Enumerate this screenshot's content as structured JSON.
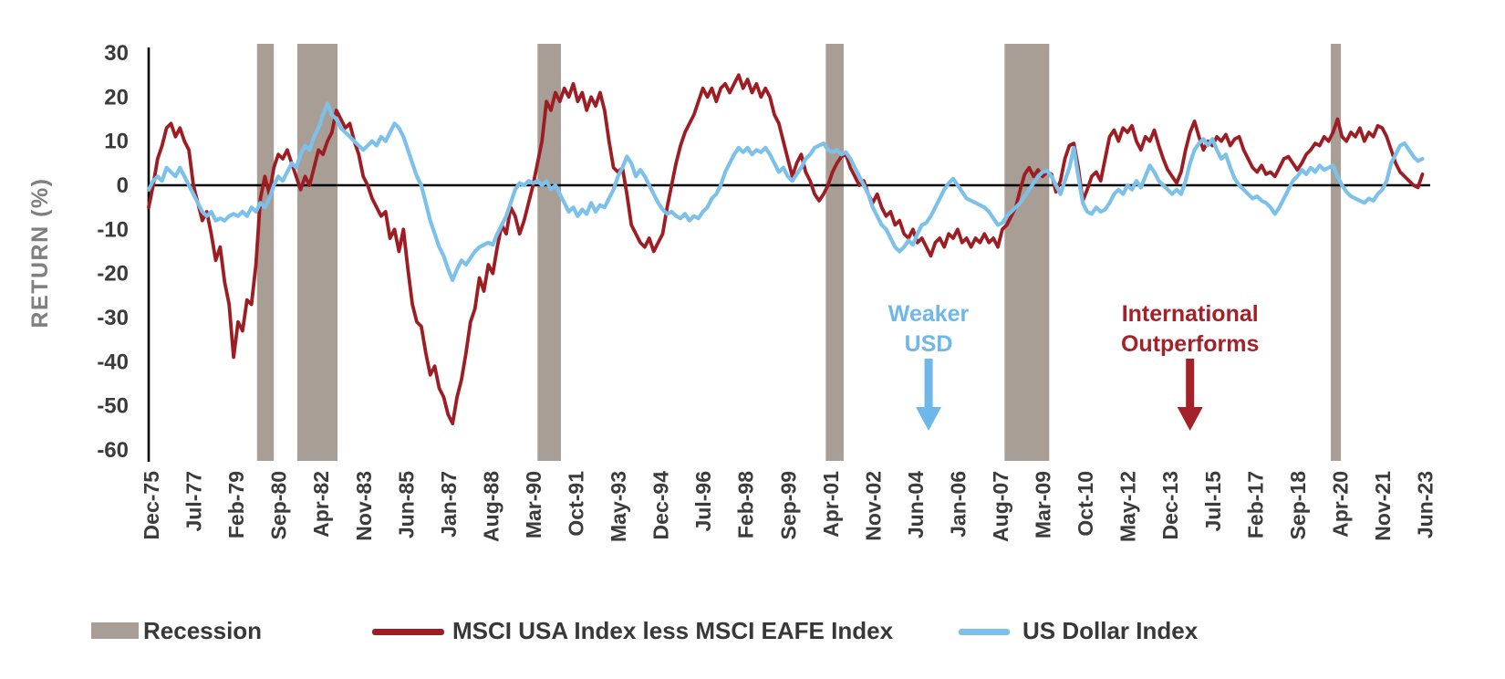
{
  "chart_data": {
    "type": "line",
    "title": "",
    "ylabel": "RETURN (%)",
    "ylim": [
      -60,
      30
    ],
    "yticks": [
      30,
      20,
      10,
      0,
      -10,
      -20,
      -30,
      -40,
      -50,
      -60
    ],
    "x_axis": {
      "unit": "months since Dec-1975",
      "tick_interval_months": 19,
      "tick_labels": [
        "Dec-75",
        "Jul-77",
        "Feb-79",
        "Sep-80",
        "Apr-82",
        "Nov-83",
        "Jun-85",
        "Jan-87",
        "Aug-88",
        "Mar-90",
        "Oct-91",
        "May-93",
        "Dec-94",
        "Jul-96",
        "Feb-98",
        "Sep-99",
        "Apr-01",
        "Nov-02",
        "Jun-04",
        "Jan-06",
        "Aug-07",
        "Mar-09",
        "Oct-10",
        "May-12",
        "Dec-13",
        "Jul-15",
        "Feb-17",
        "Sep-18",
        "Apr-20",
        "Nov-21",
        "Jun-23"
      ]
    },
    "layout_hints": {
      "grid": false,
      "legend_position": "bottom",
      "x_tick_rotation": 90,
      "zero_line": true
    },
    "recessions": {
      "label": "Recession",
      "color": "#A89E96",
      "bands_months": [
        [
          48.5,
          56
        ],
        [
          66.5,
          84.5
        ],
        [
          174,
          184.5
        ],
        [
          303,
          311
        ],
        [
          383,
          403
        ],
        [
          529,
          533.5
        ]
      ]
    },
    "series": [
      {
        "name": "MSCI USA Index less MSCI EAFE Index",
        "color": "#9E1D23",
        "start_month": 0,
        "step_months": 2,
        "values": [
          -5,
          0,
          6,
          9,
          13,
          14,
          11,
          13,
          10,
          8,
          0,
          -4,
          -8,
          -6,
          -11,
          -17,
          -14,
          -22,
          -27,
          -39,
          -31,
          -33,
          -26,
          -27,
          -18,
          -3,
          2,
          -2,
          4,
          7,
          6,
          8,
          5,
          2,
          -1,
          2,
          0,
          4,
          8,
          7,
          10,
          12,
          17,
          15,
          13,
          14,
          10,
          7,
          2,
          0,
          -3,
          -5,
          -7,
          -6,
          -12,
          -10,
          -15,
          -10,
          -19,
          -27,
          -31,
          -32,
          -38,
          -43,
          -41,
          -46,
          -48,
          -52,
          -54,
          -48,
          -44,
          -38,
          -31,
          -28,
          -21,
          -24,
          -18,
          -20,
          -14,
          -9,
          -11,
          -5,
          -7,
          -11,
          -8,
          -4,
          0,
          5,
          10,
          19,
          17,
          21,
          19,
          22,
          20,
          23,
          19,
          21,
          17,
          20,
          18,
          21,
          17,
          10,
          4,
          3,
          4,
          -2,
          -9,
          -11,
          -13,
          -14,
          -12,
          -15,
          -13,
          -11,
          -5,
          0,
          5,
          9,
          12,
          14,
          16,
          19,
          22,
          20,
          22,
          19,
          22,
          23,
          21,
          23,
          25,
          22,
          24,
          21,
          23,
          20,
          22,
          20,
          16,
          14,
          10,
          6,
          2,
          5,
          7,
          3,
          1,
          -2,
          -3.5,
          -2,
          0,
          3,
          5,
          6.5,
          7,
          4,
          2,
          0,
          1,
          -2,
          -4,
          -2,
          -5,
          -7,
          -6,
          -9,
          -8,
          -11,
          -12,
          -10,
          -13,
          -12,
          -14,
          -16,
          -13,
          -12,
          -14,
          -11,
          -12,
          -10,
          -13,
          -12,
          -14,
          -12,
          -13,
          -11,
          -13,
          -12,
          -14,
          -10,
          -9,
          -7,
          -5,
          -1,
          2.5,
          4,
          2,
          3.5,
          2,
          3,
          2.5,
          -1.5,
          1,
          6,
          9,
          9.5,
          4,
          -3.5,
          -1,
          2,
          3,
          1,
          6,
          11,
          12.5,
          10,
          13,
          12,
          13.5,
          10,
          8,
          11,
          10,
          12.5,
          9,
          6,
          3.5,
          2,
          0.5,
          3,
          8,
          12,
          14.5,
          11,
          8,
          10,
          9,
          11,
          10,
          11.5,
          9,
          10.5,
          11,
          8,
          6,
          4,
          3,
          4.5,
          2.5,
          3,
          2,
          4,
          6,
          6.5,
          5,
          3.5,
          5,
          7,
          8,
          9.5,
          9,
          11,
          10,
          12,
          15,
          11,
          10,
          12,
          11,
          13,
          10,
          12,
          11,
          13.5,
          13,
          11,
          8,
          5,
          3,
          2,
          1,
          0,
          -0.5,
          2.5
        ]
      },
      {
        "name": "US Dollar Index",
        "color": "#7CC1EA",
        "start_month": 0,
        "step_months": 2,
        "values": [
          -1,
          1,
          2,
          1,
          4,
          3,
          2,
          4,
          2,
          0,
          -2,
          -4,
          -6,
          -7,
          -6,
          -8,
          -7.5,
          -8,
          -7,
          -6.5,
          -7,
          -6,
          -7,
          -5,
          -6,
          -4,
          -5,
          -3,
          0,
          2,
          1,
          3,
          5,
          4,
          7,
          9,
          8,
          11,
          13,
          16,
          18.5,
          16,
          15,
          13,
          12,
          11,
          10,
          9,
          8,
          9,
          10,
          9,
          11,
          10,
          12,
          14,
          13,
          11,
          8,
          5,
          2,
          0,
          -4,
          -8,
          -11,
          -14,
          -16,
          -19,
          -21.5,
          -19,
          -17,
          -18,
          -16.5,
          -15,
          -14,
          -13.5,
          -13,
          -13.5,
          -11,
          -9,
          -7,
          -4,
          -1,
          0.5,
          0,
          1,
          0.5,
          1,
          0,
          1,
          -1,
          0,
          -2,
          -4,
          -6,
          -5,
          -7,
          -5.5,
          -6.5,
          -4,
          -6,
          -4.5,
          -5,
          -3,
          -1,
          2,
          4,
          6.5,
          5,
          2,
          3.5,
          2,
          0,
          -2,
          -4,
          -5.5,
          -6.5,
          -6,
          -7,
          -7.5,
          -6.5,
          -8,
          -7,
          -7.5,
          -6,
          -5,
          -3,
          -2,
          0,
          3,
          5,
          7,
          8.5,
          7.5,
          8.5,
          7,
          8,
          7.5,
          8.5,
          7,
          5,
          3,
          4,
          2,
          1,
          2.5,
          4,
          6,
          7,
          8.5,
          9,
          9.5,
          8,
          7.5,
          8,
          7,
          7.5,
          6,
          4,
          2,
          0,
          -2,
          -5,
          -7,
          -9,
          -10,
          -12,
          -14,
          -15,
          -14,
          -12.5,
          -13.5,
          -11,
          -9,
          -8.5,
          -7,
          -5,
          -3,
          -1,
          0.5,
          1.5,
          0,
          -1.5,
          -3,
          -3.5,
          -4,
          -4.5,
          -5,
          -6,
          -7.5,
          -9,
          -8.5,
          -7,
          -6,
          -5,
          -4,
          -2.5,
          -1,
          0.5,
          2,
          3,
          3.3,
          2,
          0,
          -2,
          1,
          4,
          8.5,
          2,
          -4,
          -6,
          -6.5,
          -5,
          -6,
          -5.5,
          -4,
          -2,
          -1,
          -2,
          0,
          -1,
          1,
          -0.5,
          2,
          4.5,
          3,
          1,
          0,
          -1,
          -2,
          -1,
          -2,
          1,
          5,
          8,
          9.5,
          10.5,
          9,
          10.5,
          8,
          6,
          7,
          4,
          1.5,
          0,
          -1,
          -2,
          -3,
          -2.5,
          -3.5,
          -4,
          -5,
          -6.5,
          -5,
          -3,
          -1,
          1,
          2,
          3.5,
          2.5,
          4,
          3,
          4.5,
          3.5,
          4,
          4.5,
          2,
          0,
          -1.5,
          -2.5,
          -3,
          -3.5,
          -4,
          -3,
          -3.5,
          -2,
          -1,
          1,
          5,
          7,
          9,
          9.5,
          8,
          6.5,
          5.5,
          6
        ]
      }
    ],
    "annotations": [
      {
        "text_lines": [
          "Weaker",
          "USD"
        ],
        "color": "#6FB7E8",
        "x_month": 349,
        "arrow": "down"
      },
      {
        "text_lines": [
          "International",
          "Outperforms"
        ],
        "color": "#A42129",
        "x_month": 466,
        "arrow": "down"
      }
    ]
  },
  "legend": {
    "items": [
      {
        "label": "Recession",
        "swatch": "rect",
        "color": "#A89E96"
      },
      {
        "label": "MSCI USA Index less MSCI EAFE Index",
        "swatch": "line",
        "color": "#9E1D23"
      },
      {
        "label": "US Dollar Index",
        "swatch": "line",
        "color": "#7CC1EA"
      }
    ]
  },
  "axis_colors": {
    "tick_text": "#3B3B3B",
    "axis_line": "#000000",
    "ylabel_text": "#7F7F7F"
  }
}
